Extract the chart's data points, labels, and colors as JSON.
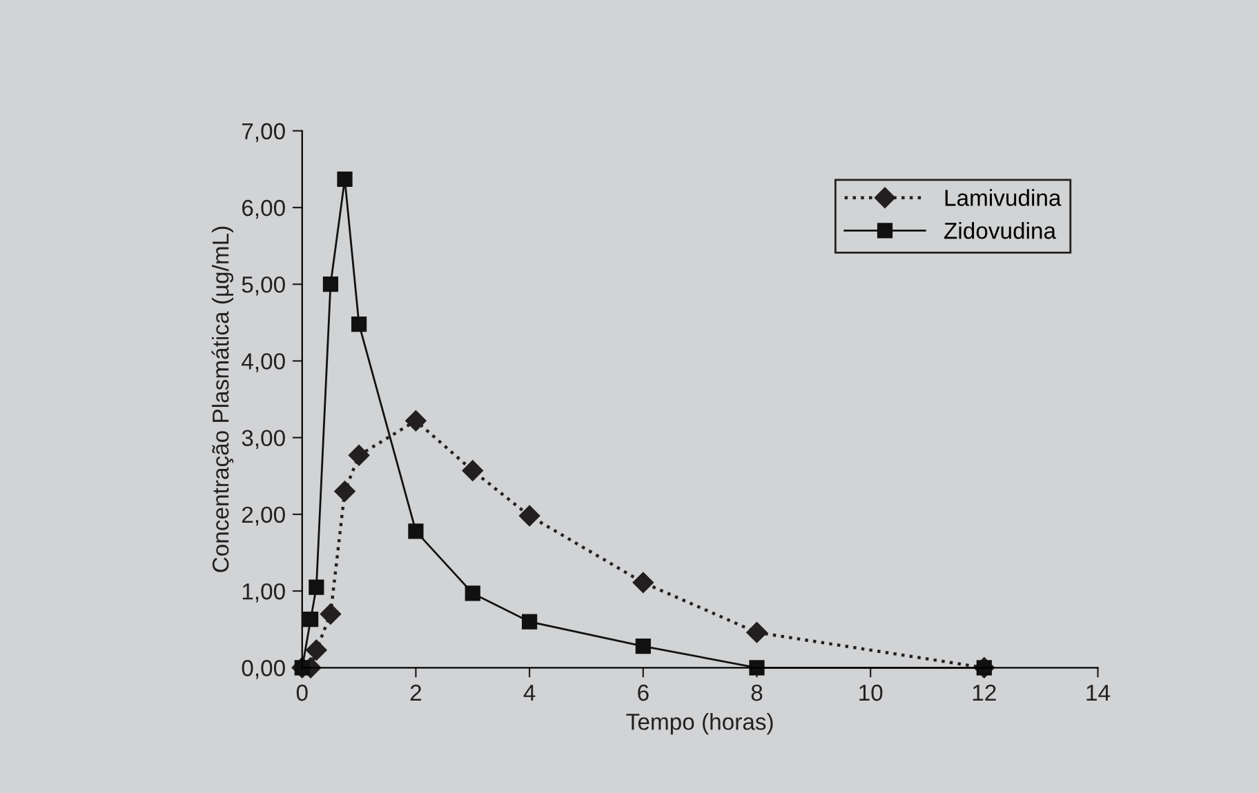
{
  "chart_data": {
    "type": "line",
    "xlabel": "Tempo (horas)",
    "ylabel": "Concentração Plasmática (µg/mL)",
    "xlim": [
      0,
      14
    ],
    "xticks": [
      0,
      2,
      4,
      6,
      8,
      10,
      12,
      14
    ],
    "ylim": [
      0,
      7
    ],
    "yticks": [
      {
        "value": 0,
        "label": "0,00"
      },
      {
        "value": 1,
        "label": "1,00"
      },
      {
        "value": 2,
        "label": "2,00"
      },
      {
        "value": 3,
        "label": "3,00"
      },
      {
        "value": 4,
        "label": "4,00"
      },
      {
        "value": 5,
        "label": "5,00"
      },
      {
        "value": 6,
        "label": "6,00"
      },
      {
        "value": 7,
        "label": "7,00"
      }
    ],
    "grid": false,
    "legend": "top right",
    "series": [
      {
        "name": "Lamivudina",
        "color": "#231f20",
        "marker": "diamond",
        "line_style": "dotted",
        "x": [
          0,
          0.15,
          0.25,
          0.5,
          0.75,
          1,
          2,
          3,
          4,
          6,
          8,
          12
        ],
        "values": [
          0,
          0,
          0.23,
          0.7,
          2.3,
          2.77,
          3.22,
          2.57,
          1.98,
          1.11,
          0.46,
          0
        ]
      },
      {
        "name": "Zidovudina",
        "color": "#111111",
        "marker": "square",
        "line_style": "solid",
        "x": [
          0,
          0.15,
          0.25,
          0.5,
          0.75,
          1,
          2,
          3,
          4,
          6,
          8,
          12
        ],
        "values": [
          0,
          0.63,
          1.05,
          5.0,
          6.37,
          4.48,
          1.78,
          0.97,
          0.6,
          0.28,
          0,
          0
        ]
      }
    ]
  }
}
